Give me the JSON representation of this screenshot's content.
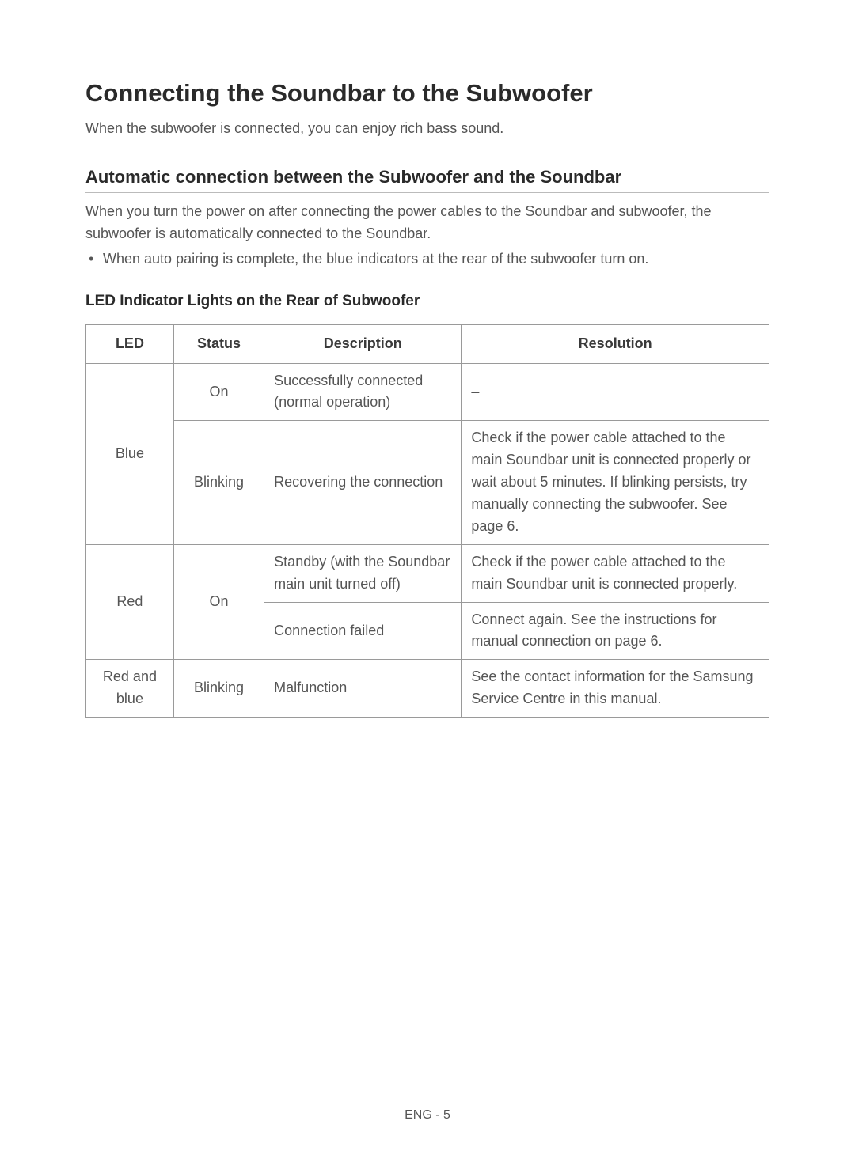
{
  "title": "Connecting the Soundbar to the Subwoofer",
  "intro": "When the subwoofer is connected, you can enjoy rich bass sound.",
  "sub_heading": "Automatic connection between the Subwoofer and the Soundbar",
  "section_text": "When you turn the power on after connecting the power cables to the Soundbar and subwoofer, the subwoofer is automatically connected to the Soundbar.",
  "bullet": "When auto pairing is complete, the blue indicators at the rear of the subwoofer turn on.",
  "table_heading": "LED Indicator Lights on the Rear of Subwoofer",
  "table": {
    "headers": {
      "led": "LED",
      "status": "Status",
      "description": "Description",
      "resolution": "Resolution"
    },
    "columns": {
      "led_width": 97,
      "status_width": 100,
      "desc_width": 218,
      "res_width": 340
    },
    "rows": [
      {
        "led": "Blue",
        "status": "On",
        "description": "Successfully connected (normal operation)",
        "resolution": "–"
      },
      {
        "led": "Blue",
        "status": "Blinking",
        "description": "Recovering the connection",
        "resolution": "Check if the power cable attached to the main Soundbar unit is connected properly or wait about 5 minutes. If blinking persists, try manually connecting the subwoofer. See page 6."
      },
      {
        "led": "Red",
        "status": "On",
        "description": "Standby (with the Soundbar main unit turned off)",
        "resolution": "Check if the power cable attached to the main Soundbar unit is connected properly."
      },
      {
        "led": "Red",
        "status": "On",
        "description": "Connection failed",
        "resolution": "Connect again. See the instructions for manual connection on page 6."
      },
      {
        "led": "Red and blue",
        "status": "Blinking",
        "description": "Malfunction",
        "resolution": "See the contact information for the Samsung Service Centre in this manual."
      }
    ]
  },
  "footer": "ENG - 5",
  "styling": {
    "background_color": "#ffffff",
    "text_color": "#555555",
    "heading_color": "#2a2a2a",
    "border_color": "#9a9a9a",
    "underline_color": "#bbbbbb",
    "title_fontsize": 31,
    "sub_heading_fontsize": 22,
    "body_fontsize": 18,
    "table_heading_fontsize": 19,
    "footer_fontsize": 16
  }
}
